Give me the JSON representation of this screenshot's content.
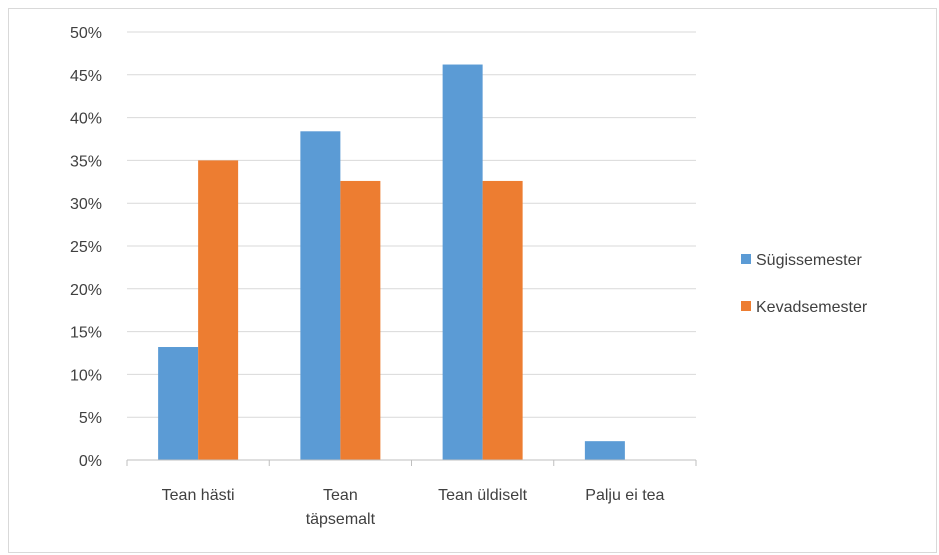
{
  "chart_data": {
    "type": "bar",
    "categories": [
      [
        "Tean hästi"
      ],
      [
        "Tean",
        "täpsemalt"
      ],
      [
        "Tean üldiselt"
      ],
      [
        "Palju ei tea"
      ]
    ],
    "series": [
      {
        "name": "Sügissemester",
        "color": "#5b9bd5",
        "values": [
          13.2,
          38.4,
          46.2,
          2.2
        ]
      },
      {
        "name": "Kevadsemester",
        "color": "#ed7d31",
        "values": [
          35.0,
          32.6,
          32.6,
          0
        ]
      }
    ],
    "yticks": [
      "0%",
      "5%",
      "10%",
      "15%",
      "20%",
      "25%",
      "30%",
      "35%",
      "40%",
      "45%",
      "50%"
    ],
    "ylim": [
      0,
      50
    ],
    "grid": true,
    "legend": "right",
    "colors": {
      "grid": "#d9d9d9",
      "axis": "#bfbfbf",
      "text": "#404040"
    }
  }
}
